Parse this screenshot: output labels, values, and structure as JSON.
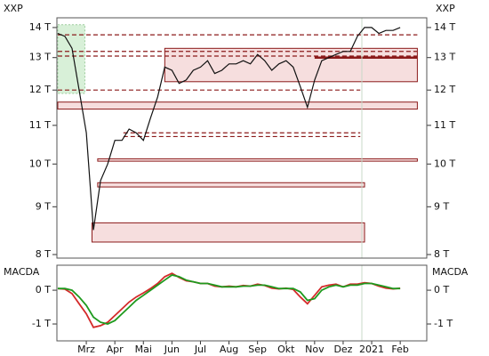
{
  "chart_data": [
    {
      "type": "line",
      "label": "XXP",
      "log": true,
      "xlim": [
        -0.03,
        12.93
      ],
      "ylim": [
        7.93,
        14.34
      ],
      "yticks": [
        {
          "value": 8,
          "label": "8 T"
        },
        {
          "value": 9,
          "label": "9 T"
        },
        {
          "value": 10,
          "label": "10 T"
        },
        {
          "value": 11,
          "label": "11 T"
        },
        {
          "value": 12,
          "label": "12 T"
        },
        {
          "value": 13,
          "label": "13 T"
        },
        {
          "value": 14,
          "label": "14 T"
        }
      ],
      "zones": [
        {
          "x": [
            0,
            0.95
          ],
          "y": [
            11.9,
            14.1
          ],
          "color": "#d8f0d8"
        },
        {
          "x": [
            3.75,
            12.6
          ],
          "y": [
            12.25,
            13.3
          ],
          "color": "#f6dede"
        },
        {
          "x": [
            0,
            12.6
          ],
          "y": [
            11.45,
            11.65
          ],
          "color": "#f6dede"
        },
        {
          "x": [
            1.4,
            12.6
          ],
          "y": [
            10.07,
            10.13
          ],
          "color": "#f6dede"
        },
        {
          "x": [
            1.4,
            10.75
          ],
          "y": [
            9.45,
            9.55
          ],
          "color": "#f6dede"
        },
        {
          "x": [
            1.2,
            10.75
          ],
          "y": [
            8.25,
            8.65
          ],
          "color": "#f6dede"
        }
      ],
      "levels": [
        {
          "y": 13.75,
          "x": [
            0,
            12.6
          ],
          "style": "dashed"
        },
        {
          "y": 13.2,
          "x": [
            0,
            12.6
          ],
          "style": "dashed"
        },
        {
          "y": 13.05,
          "x": [
            0,
            12.6
          ],
          "style": "dashed"
        },
        {
          "y": 13.0,
          "x": [
            9.0,
            12.6
          ],
          "style": "thick"
        },
        {
          "y": 12.0,
          "x": [
            0,
            10.6
          ],
          "style": "dashed"
        },
        {
          "y": 10.8,
          "x": [
            2.3,
            10.6
          ],
          "style": "dashed"
        },
        {
          "y": 10.7,
          "x": [
            2.3,
            10.6
          ],
          "style": "dashed"
        }
      ],
      "series": [
        {
          "color": "#111111",
          "x": [
            0,
            0.25,
            0.5,
            0.75,
            1,
            1.25,
            1.5,
            1.75,
            2,
            2.25,
            2.5,
            2.75,
            3,
            3.25,
            3.5,
            3.75,
            4,
            4.25,
            4.5,
            4.75,
            5,
            5.25,
            5.5,
            5.75,
            6,
            6.25,
            6.5,
            6.75,
            7,
            7.25,
            7.5,
            7.75,
            8,
            8.25,
            8.5,
            8.75,
            9,
            9.25,
            9.5,
            9.75,
            10,
            10.25,
            10.5,
            10.75,
            11,
            11.25,
            11.5,
            11.75,
            12
          ],
          "values": [
            13.8,
            13.7,
            13.3,
            12.0,
            10.8,
            8.5,
            9.6,
            10.0,
            10.6,
            10.6,
            10.9,
            10.8,
            10.6,
            11.2,
            11.8,
            12.7,
            12.6,
            12.2,
            12.3,
            12.6,
            12.7,
            12.9,
            12.5,
            12.6,
            12.8,
            12.8,
            12.9,
            12.8,
            13.1,
            12.9,
            12.6,
            12.8,
            12.9,
            12.7,
            12.1,
            11.5,
            12.3,
            12.9,
            13.0,
            13.1,
            13.2,
            13.2,
            13.7,
            14.0,
            14.0,
            13.8,
            13.9,
            13.9,
            14.0
          ]
        }
      ]
    },
    {
      "type": "line",
      "label": "MACDA",
      "log": false,
      "xlim": [
        -0.03,
        12.93
      ],
      "ylim": [
        -1.5,
        0.74
      ],
      "yticks": [
        {
          "value": -1,
          "label": "-1 T"
        },
        {
          "value": 0,
          "label": "0 T"
        }
      ],
      "xticks": [
        {
          "value": 1,
          "label": "Mrz"
        },
        {
          "value": 2,
          "label": "Apr"
        },
        {
          "value": 3,
          "label": "Mai"
        },
        {
          "value": 4,
          "label": "Jun"
        },
        {
          "value": 5,
          "label": "Jul"
        },
        {
          "value": 6,
          "label": "Aug"
        },
        {
          "value": 7,
          "label": "Sep"
        },
        {
          "value": 8,
          "label": "Okt"
        },
        {
          "value": 9,
          "label": "Nov"
        },
        {
          "value": 10,
          "label": "Dez"
        },
        11,
        {
          "value": 11,
          "label": "2021"
        },
        {
          "value": 12,
          "label": "Feb"
        }
      ],
      "series": [
        {
          "color": "#d42a2a",
          "x": [
            0,
            0.25,
            0.5,
            0.75,
            1,
            1.25,
            1.5,
            1.75,
            2,
            2.25,
            2.5,
            2.75,
            3,
            3.25,
            3.5,
            3.75,
            4,
            4.25,
            4.5,
            4.75,
            5,
            5.25,
            5.5,
            5.75,
            6,
            6.25,
            6.5,
            6.75,
            7,
            7.25,
            7.5,
            7.75,
            8,
            8.25,
            8.5,
            8.75,
            9,
            9.25,
            9.5,
            9.75,
            10,
            10.25,
            10.5,
            10.75,
            11,
            11.25,
            11.5,
            11.75,
            12
          ],
          "values": [
            0.05,
            0.03,
            -0.1,
            -0.4,
            -0.7,
            -1.1,
            -1.05,
            -0.95,
            -0.75,
            -0.55,
            -0.35,
            -0.2,
            -0.08,
            0.05,
            0.2,
            0.4,
            0.5,
            0.38,
            0.28,
            0.25,
            0.2,
            0.2,
            0.12,
            0.1,
            0.12,
            0.1,
            0.14,
            0.12,
            0.18,
            0.14,
            0.06,
            0.04,
            0.06,
            0.02,
            -0.2,
            -0.4,
            -0.15,
            0.1,
            0.15,
            0.18,
            0.1,
            0.18,
            0.18,
            0.22,
            0.2,
            0.12,
            0.06,
            0.04,
            0.06
          ]
        },
        {
          "color": "#1e9a1e",
          "x": [
            0,
            0.25,
            0.5,
            0.75,
            1,
            1.25,
            1.5,
            1.75,
            2,
            2.25,
            2.5,
            2.75,
            3,
            3.25,
            3.5,
            3.75,
            4,
            4.25,
            4.5,
            4.75,
            5,
            5.25,
            5.5,
            5.75,
            6,
            6.25,
            6.5,
            6.75,
            7,
            7.25,
            7.5,
            7.75,
            8,
            8.25,
            8.5,
            8.75,
            9,
            9.25,
            9.5,
            9.75,
            10,
            10.25,
            10.5,
            10.75,
            11,
            11.25,
            11.5,
            11.75,
            12
          ],
          "values": [
            0.05,
            0.05,
            0,
            -0.2,
            -0.45,
            -0.8,
            -0.95,
            -1.0,
            -0.9,
            -0.7,
            -0.5,
            -0.3,
            -0.15,
            0,
            0.15,
            0.3,
            0.45,
            0.4,
            0.3,
            0.25,
            0.2,
            0.2,
            0.15,
            0.1,
            0.1,
            0.1,
            0.12,
            0.12,
            0.15,
            0.15,
            0.1,
            0.05,
            0.05,
            0.05,
            -0.05,
            -0.3,
            -0.25,
            0,
            0.1,
            0.15,
            0.1,
            0.15,
            0.15,
            0.2,
            0.2,
            0.15,
            0.1,
            0.05,
            0.05
          ]
        }
      ]
    }
  ]
}
